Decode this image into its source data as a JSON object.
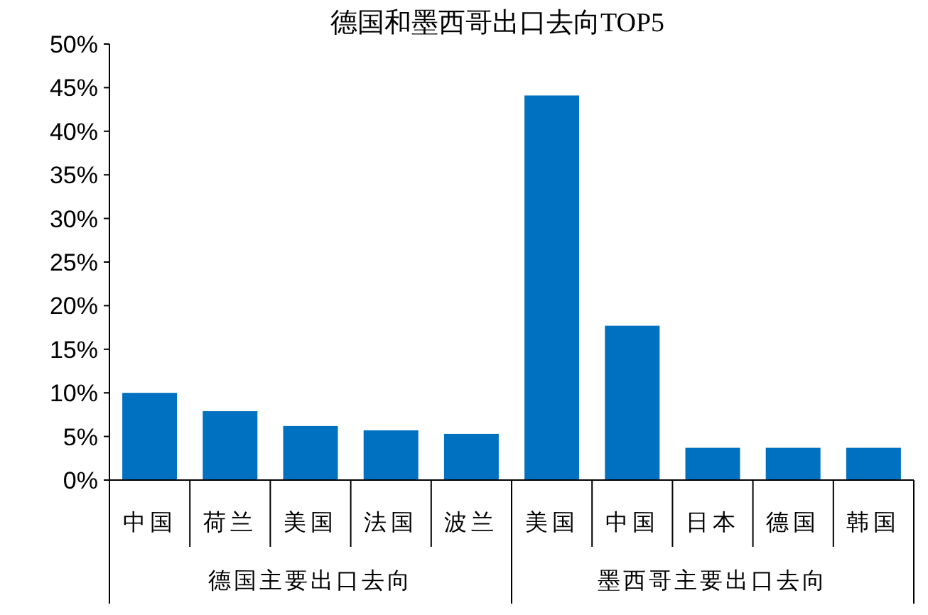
{
  "chart_data": {
    "type": "bar",
    "title": "德国和墨西哥出口去向TOP5",
    "categories": [
      "中国",
      "荷兰",
      "美国",
      "法国",
      "波兰",
      "美国",
      "中国",
      "日本",
      "德国",
      "韩国"
    ],
    "values": [
      10,
      7.9,
      6.2,
      5.7,
      5.3,
      44.1,
      17.7,
      3.7,
      3.7,
      3.7
    ],
    "color": "#0070c0",
    "ylim": [
      0,
      50
    ],
    "yticks": [
      {
        "value": 0,
        "label": "0%"
      },
      {
        "value": 5,
        "label": "5%"
      },
      {
        "value": 10,
        "label": "10%"
      },
      {
        "value": 15,
        "label": "15%"
      },
      {
        "value": 20,
        "label": "20%"
      },
      {
        "value": 25,
        "label": "25%"
      },
      {
        "value": 30,
        "label": "30%"
      },
      {
        "value": 35,
        "label": "35%"
      },
      {
        "value": 40,
        "label": "40%"
      },
      {
        "value": 45,
        "label": "45%"
      },
      {
        "value": 50,
        "label": "50%"
      }
    ],
    "annotations": [
      "德国主要出口去向",
      "墨西哥主要出口去向"
    ],
    "grid": false
  }
}
